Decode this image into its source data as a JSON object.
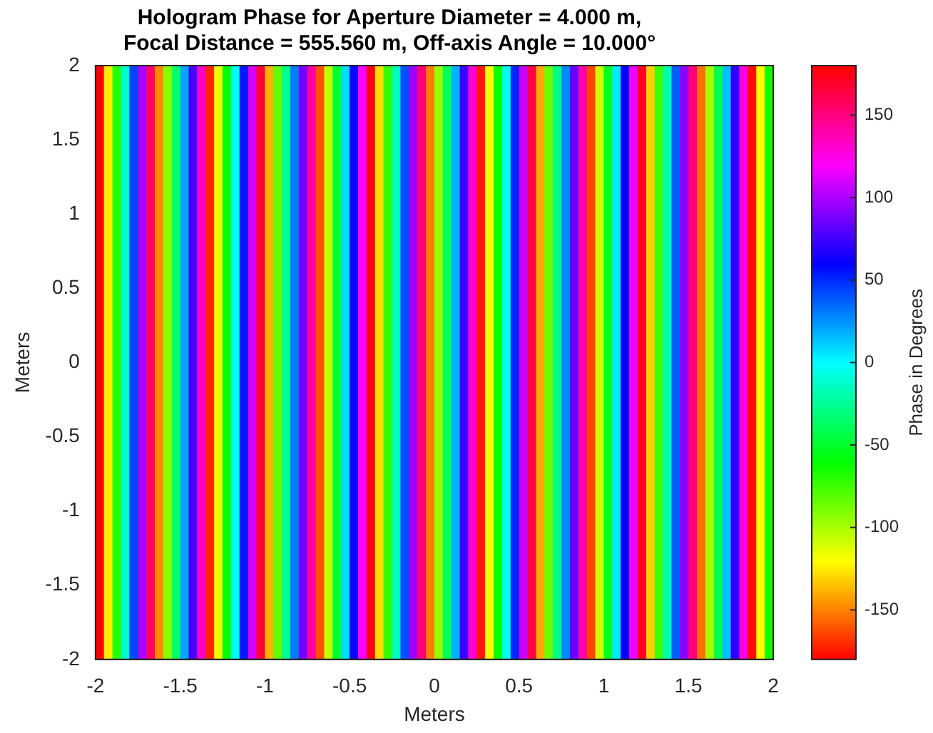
{
  "chart_data": {
    "type": "heatmap",
    "title": "Hologram Phase for Aperture Diameter = 4.000 m,\nFocal Distance = 555.560 m, Off-axis Angle = 10.000°",
    "xlabel": "Meters",
    "ylabel": "Meters",
    "clabel": "Phase in Degrees",
    "x": [
      -1.975,
      -1.925,
      -1.875,
      -1.825,
      -1.775,
      -1.725,
      -1.675,
      -1.625,
      -1.575,
      -1.525,
      -1.475,
      -1.425,
      -1.375,
      -1.325,
      -1.275,
      -1.225,
      -1.175,
      -1.125,
      -1.075,
      -1.025,
      -0.975,
      -0.925,
      -0.875,
      -0.825,
      -0.775,
      -0.725,
      -0.675,
      -0.625,
      -0.575,
      -0.525,
      -0.475,
      -0.425,
      -0.375,
      -0.325,
      -0.275,
      -0.225,
      -0.175,
      -0.125,
      -0.075,
      -0.025,
      0.025,
      0.075,
      0.125,
      0.175,
      0.225,
      0.275,
      0.325,
      0.375,
      0.425,
      0.475,
      0.525,
      0.575,
      0.625,
      0.675,
      0.725,
      0.775,
      0.825,
      0.875,
      0.925,
      0.975,
      1.025,
      1.075,
      1.125,
      1.175,
      1.225,
      1.275,
      1.325,
      1.375,
      1.425,
      1.475,
      1.525,
      1.575,
      1.625,
      1.675,
      1.725,
      1.775,
      1.825,
      1.875,
      1.925,
      1.975
    ],
    "cells": [
      [
        179,
        -125,
        -69,
        -13,
        44,
        100,
        156,
        -148,
        -92,
        -36,
        21,
        77,
        133,
        -171,
        -115,
        -59,
        -3,
        54,
        110,
        166,
        -138,
        -82,
        -26,
        31,
        87,
        143,
        -161,
        -105,
        -49,
        8,
        64,
        120,
        176,
        -128,
        -72,
        -15,
        41,
        97,
        153,
        -151,
        -95,
        -39,
        18,
        74,
        130,
        -174,
        -118,
        -62,
        -5,
        51,
        107,
        163,
        -141,
        -85,
        -28,
        28,
        84,
        140,
        -164,
        -108,
        -51,
        5,
        61,
        117,
        173,
        -131,
        -74,
        -18,
        38,
        94,
        150,
        -154,
        -98,
        -41,
        15,
        71,
        127,
        -177,
        -121,
        -64
      ]
    ],
    "xlim": [
      -2,
      2
    ],
    "xticks": [
      -2,
      -1.5,
      -1,
      -0.5,
      0,
      0.5,
      1,
      1.5,
      2
    ],
    "ylim": [
      -2,
      2
    ],
    "yticks": [
      -2,
      -1.5,
      -1,
      -0.5,
      0,
      0.5,
      1,
      1.5,
      2
    ],
    "clim": [
      -180,
      180
    ],
    "cticks": [
      -150,
      -100,
      -50,
      0,
      50,
      100,
      150
    ]
  }
}
